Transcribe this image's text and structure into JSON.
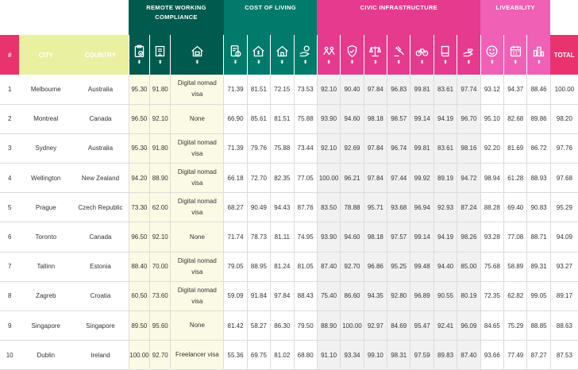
{
  "groups": {
    "remote": "REMOTE WORKING COMPLIANCE",
    "cost": "COST OF LIVING",
    "civic": "CIVIC INFRASTRUCTURE",
    "live": "LIVEABILITY"
  },
  "headers": {
    "num": "#",
    "city": "CITY",
    "country": "COUNTRY",
    "total": "TOTAL",
    "sort_glyph": "⬍"
  },
  "rows": [
    {
      "rank": "1",
      "city": "Melbourne",
      "country": "Australia",
      "r1": "95.30",
      "r2": "91.80",
      "visa": "Digital nomad visa",
      "c1": "71.39",
      "c2": "81.51",
      "c3": "72.15",
      "c4": "73.53",
      "v1": "92.10",
      "v2": "90.40",
      "v3": "97.84",
      "v4": "96.83",
      "v5": "99.81",
      "v6": "83.61",
      "v7": "97.74",
      "l1": "93.12",
      "l2": "94.37",
      "l3": "88.46",
      "total": "100.00"
    },
    {
      "rank": "2",
      "city": "Montreal",
      "country": "Canada",
      "r1": "96.50",
      "r2": "92.10",
      "visa": "None",
      "c1": "66.90",
      "c2": "85.61",
      "c3": "81.51",
      "c4": "75.88",
      "v1": "93.90",
      "v2": "94.60",
      "v3": "98.18",
      "v4": "98.57",
      "v5": "99.14",
      "v6": "94.19",
      "v7": "96.70",
      "l1": "95.10",
      "l2": "82.68",
      "l3": "89.86",
      "total": "98.20"
    },
    {
      "rank": "3",
      "city": "Sydney",
      "country": "Australia",
      "r1": "95.30",
      "r2": "91.80",
      "visa": "Digital nomad visa",
      "c1": "71.39",
      "c2": "79.76",
      "c3": "75.88",
      "c4": "73.44",
      "v1": "92.10",
      "v2": "92.69",
      "v3": "97.84",
      "v4": "96.74",
      "v5": "99.81",
      "v6": "83.61",
      "v7": "98.16",
      "l1": "92.20",
      "l2": "81.69",
      "l3": "86.72",
      "total": "97.76"
    },
    {
      "rank": "4",
      "city": "Wellington",
      "country": "New Zealand",
      "r1": "94.20",
      "r2": "88.90",
      "visa": "Digital nomad visa",
      "c1": "66.18",
      "c2": "72.70",
      "c3": "82.35",
      "c4": "77.05",
      "v1": "100.00",
      "v2": "96.21",
      "v3": "97.84",
      "v4": "97.44",
      "v5": "99.92",
      "v6": "89.19",
      "v7": "94.72",
      "l1": "98.94",
      "l2": "61.28",
      "l3": "88.93",
      "total": "97.68"
    },
    {
      "rank": "5",
      "city": "Prague",
      "country": "Czech Republic",
      "r1": "73.30",
      "r2": "62.00",
      "visa": "Digital nomad visa",
      "c1": "68.27",
      "c2": "90.49",
      "c3": "94.43",
      "c4": "87.76",
      "v1": "83.50",
      "v2": "78.88",
      "v3": "95.71",
      "v4": "93.68",
      "v5": "96.94",
      "v6": "92.93",
      "v7": "87.24",
      "l1": "88.28",
      "l2": "69.40",
      "l3": "90.83",
      "total": "95.29"
    },
    {
      "rank": "6",
      "city": "Toronto",
      "country": "Canada",
      "r1": "96.50",
      "r2": "92.10",
      "visa": "None",
      "c1": "71.74",
      "c2": "78.73",
      "c3": "81.11",
      "c4": "74.95",
      "v1": "93.90",
      "v2": "94.60",
      "v3": "98.18",
      "v4": "97.57",
      "v5": "99.14",
      "v6": "94.19",
      "v7": "98.26",
      "l1": "93.28",
      "l2": "77.08",
      "l3": "88.71",
      "total": "94.09"
    },
    {
      "rank": "7",
      "city": "Tallinn",
      "country": "Estonia",
      "r1": "88.40",
      "r2": "70.00",
      "visa": "Digital nomad visa",
      "c1": "79.05",
      "c2": "88.95",
      "c3": "81.24",
      "c4": "81.05",
      "v1": "87.40",
      "v2": "92.70",
      "v3": "96.86",
      "v4": "95.25",
      "v5": "99.48",
      "v6": "94.40",
      "v7": "85.00",
      "l1": "75.68",
      "l2": "58.89",
      "l3": "89.31",
      "total": "93.27"
    },
    {
      "rank": "8",
      "city": "Zagreb",
      "country": "Croatia",
      "r1": "60.50",
      "r2": "73.60",
      "visa": "Digital nomad visa",
      "c1": "59.09",
      "c2": "91.84",
      "c3": "97.84",
      "c4": "88.43",
      "v1": "75.40",
      "v2": "86.60",
      "v3": "94.35",
      "v4": "92.80",
      "v5": "96.89",
      "v6": "90.55",
      "v7": "80.19",
      "l1": "72.35",
      "l2": "62.82",
      "l3": "99.05",
      "total": "89.17"
    },
    {
      "rank": "9",
      "city": "Singapore",
      "country": "Singapore",
      "r1": "89.50",
      "r2": "95.60",
      "visa": "None",
      "c1": "81.42",
      "c2": "58.27",
      "c3": "86.30",
      "c4": "79.50",
      "v1": "88.90",
      "v2": "100.00",
      "v3": "92.97",
      "v4": "84.69",
      "v5": "95.47",
      "v6": "92.41",
      "v7": "96.09",
      "l1": "84.65",
      "l2": "75.29",
      "l3": "88.85",
      "total": "88.63"
    },
    {
      "rank": "10",
      "city": "Dublin",
      "country": "Ireland",
      "r1": "100.00",
      "r2": "92.70",
      "visa": "Freelancer visa",
      "c1": "55.36",
      "c2": "69.75",
      "c3": "81.02",
      "c4": "68.80",
      "v1": "91.10",
      "v2": "93.34",
      "v3": "99.10",
      "v4": "98.31",
      "v5": "97.59",
      "v6": "89.83",
      "v7": "87.40",
      "l1": "93.66",
      "l2": "77.49",
      "l3": "87.27",
      "total": "87.53"
    }
  ]
}
